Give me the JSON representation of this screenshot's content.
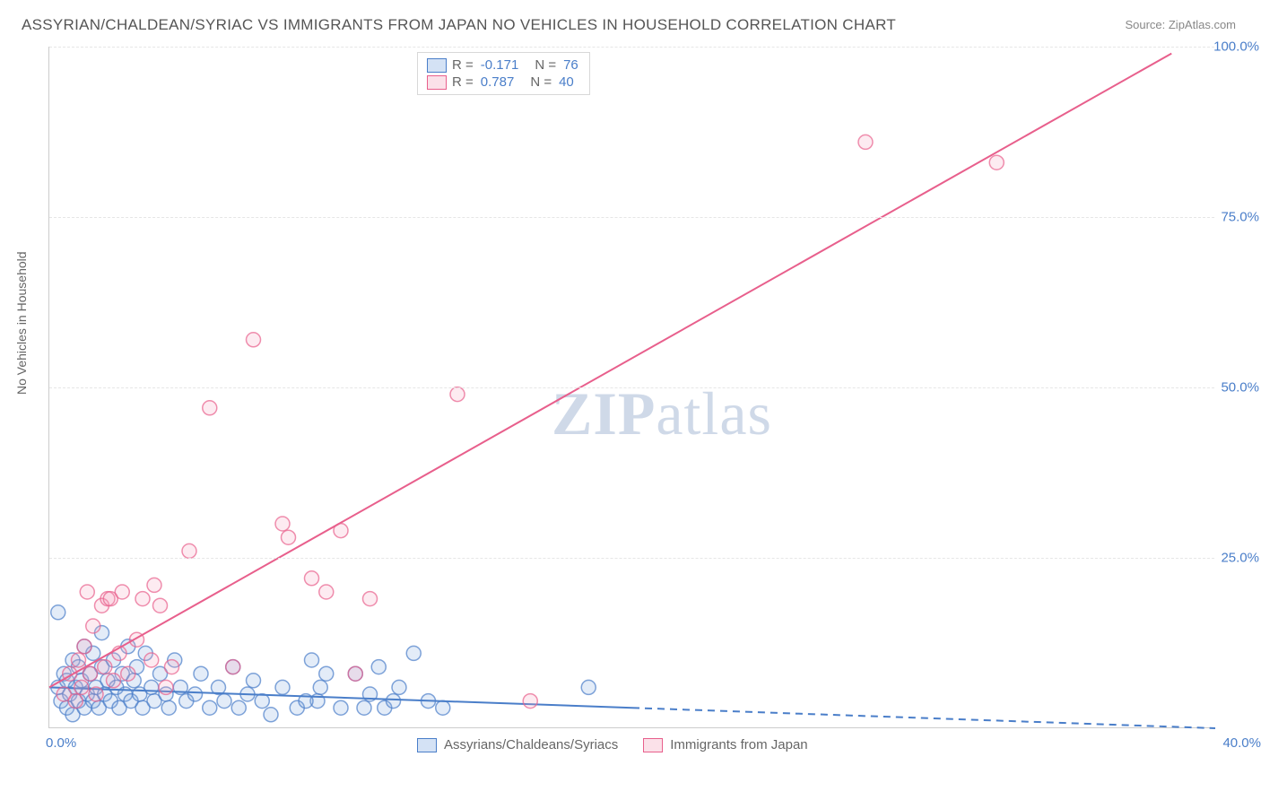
{
  "title": "ASSYRIAN/CHALDEAN/SYRIAC VS IMMIGRANTS FROM JAPAN NO VEHICLES IN HOUSEHOLD CORRELATION CHART",
  "source": "Source: ZipAtlas.com",
  "ylabel": "No Vehicles in Household",
  "watermark_a": "ZIP",
  "watermark_b": "atlas",
  "chart": {
    "type": "scatter-with-regression",
    "xlim": [
      0,
      40
    ],
    "ylim": [
      0,
      100
    ],
    "yticks": [
      25,
      50,
      75,
      100
    ],
    "ytick_labels": [
      "25.0%",
      "50.0%",
      "75.0%",
      "100.0%"
    ],
    "xtick_left": "0.0%",
    "xtick_right": "40.0%",
    "background_color": "#ffffff",
    "grid_color": "#e6e6e6",
    "axis_color": "#cccccc",
    "tick_label_color": "#4a7ec9",
    "series": [
      {
        "key": "assyrian",
        "label": "Assyrians/Chaldeans/Syriacs",
        "color_fill": "#7ea8e0",
        "color_stroke": "#4a7ec9",
        "R": "-0.171",
        "N": "76",
        "marker_radius": 8,
        "regression": {
          "x1": 0,
          "y1": 6.0,
          "x2": 20,
          "y2": 3.0,
          "dashed_to_x": 40,
          "dashed_to_y": 0.0
        },
        "points": [
          [
            0.3,
            6
          ],
          [
            0.4,
            4
          ],
          [
            0.5,
            8
          ],
          [
            0.6,
            3
          ],
          [
            0.6,
            7
          ],
          [
            0.7,
            5
          ],
          [
            0.8,
            10
          ],
          [
            0.8,
            2
          ],
          [
            0.9,
            6
          ],
          [
            1.0,
            4
          ],
          [
            1.0,
            9
          ],
          [
            1.1,
            7
          ],
          [
            1.2,
            3
          ],
          [
            1.2,
            12
          ],
          [
            1.3,
            5
          ],
          [
            1.4,
            8
          ],
          [
            1.5,
            4
          ],
          [
            1.5,
            11
          ],
          [
            1.6,
            6
          ],
          [
            1.7,
            3
          ],
          [
            1.8,
            9
          ],
          [
            1.8,
            14
          ],
          [
            1.9,
            5
          ],
          [
            2.0,
            7
          ],
          [
            2.1,
            4
          ],
          [
            2.2,
            10
          ],
          [
            2.3,
            6
          ],
          [
            2.4,
            3
          ],
          [
            2.5,
            8
          ],
          [
            2.6,
            5
          ],
          [
            2.7,
            12
          ],
          [
            2.8,
            4
          ],
          [
            2.9,
            7
          ],
          [
            3.0,
            9
          ],
          [
            3.1,
            5
          ],
          [
            3.2,
            3
          ],
          [
            3.3,
            11
          ],
          [
            3.5,
            6
          ],
          [
            3.6,
            4
          ],
          [
            3.8,
            8
          ],
          [
            4.0,
            5
          ],
          [
            4.1,
            3
          ],
          [
            4.3,
            10
          ],
          [
            4.5,
            6
          ],
          [
            4.7,
            4
          ],
          [
            5.0,
            5
          ],
          [
            5.2,
            8
          ],
          [
            5.5,
            3
          ],
          [
            5.8,
            6
          ],
          [
            6.0,
            4
          ],
          [
            6.3,
            9
          ],
          [
            6.5,
            3
          ],
          [
            6.8,
            5
          ],
          [
            7.0,
            7
          ],
          [
            7.3,
            4
          ],
          [
            7.6,
            2
          ],
          [
            8.0,
            6
          ],
          [
            8.5,
            3
          ],
          [
            9.0,
            10
          ],
          [
            9.2,
            4
          ],
          [
            9.5,
            8
          ],
          [
            10.0,
            3
          ],
          [
            10.5,
            8
          ],
          [
            11.0,
            5
          ],
          [
            11.5,
            3
          ],
          [
            12.0,
            6
          ],
          [
            12.5,
            11
          ],
          [
            13.0,
            4
          ],
          [
            13.5,
            3
          ],
          [
            8.8,
            4
          ],
          [
            9.3,
            6
          ],
          [
            10.8,
            3
          ],
          [
            11.3,
            9
          ],
          [
            11.8,
            4
          ],
          [
            18.5,
            6
          ],
          [
            0.3,
            17
          ]
        ]
      },
      {
        "key": "japan",
        "label": "Immigrants from Japan",
        "color_fill": "#f4a6bd",
        "color_stroke": "#e85f8c",
        "R": "0.787",
        "N": "40",
        "marker_radius": 8,
        "regression": {
          "x1": 0,
          "y1": 6.0,
          "x2": 38.5,
          "y2": 99.0
        },
        "points": [
          [
            0.5,
            5
          ],
          [
            0.7,
            8
          ],
          [
            0.9,
            4
          ],
          [
            1.0,
            10
          ],
          [
            1.1,
            6
          ],
          [
            1.2,
            12
          ],
          [
            1.4,
            8
          ],
          [
            1.5,
            15
          ],
          [
            1.6,
            5
          ],
          [
            1.8,
            18
          ],
          [
            1.9,
            9
          ],
          [
            2.0,
            19
          ],
          [
            2.2,
            7
          ],
          [
            2.4,
            11
          ],
          [
            2.5,
            20
          ],
          [
            2.7,
            8
          ],
          [
            3.0,
            13
          ],
          [
            3.2,
            19
          ],
          [
            3.5,
            10
          ],
          [
            3.8,
            18
          ],
          [
            4.0,
            6
          ],
          [
            4.2,
            9
          ],
          [
            4.8,
            26
          ],
          [
            5.5,
            47
          ],
          [
            6.3,
            9
          ],
          [
            7.0,
            57
          ],
          [
            8.0,
            30
          ],
          [
            8.2,
            28
          ],
          [
            9.0,
            22
          ],
          [
            9.5,
            20
          ],
          [
            10.0,
            29
          ],
          [
            10.5,
            8
          ],
          [
            11.0,
            19
          ],
          [
            14.0,
            49
          ],
          [
            16.5,
            4
          ],
          [
            28.0,
            86
          ],
          [
            32.5,
            83
          ],
          [
            1.3,
            20
          ],
          [
            2.1,
            19
          ],
          [
            3.6,
            21
          ]
        ]
      }
    ]
  }
}
